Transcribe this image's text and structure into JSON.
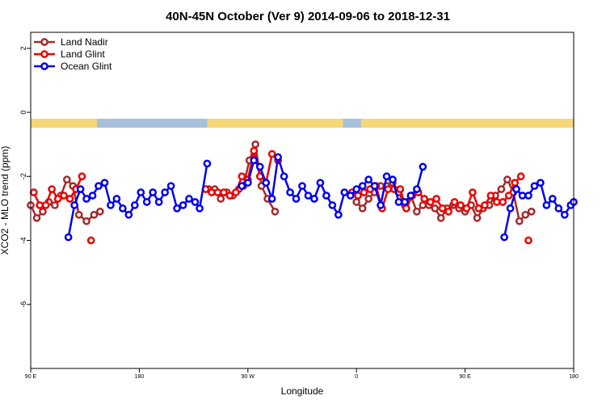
{
  "chart_data": {
    "type": "line",
    "title": "40N-45N October (Ver 9)   2014-09-06 to 2018-12-31",
    "xlabel": "Longitude",
    "ylabel": "XCO2 - MLO trend (ppm)",
    "xlim": [
      0,
      360
    ],
    "ylim": [
      -8,
      2.5
    ],
    "yticks": [
      2,
      0,
      -2,
      -4,
      -6
    ],
    "xticks": [
      {
        "pos": 0,
        "label": "90 E"
      },
      {
        "pos": 72,
        "label": "180"
      },
      {
        "pos": 144,
        "label": "90 W"
      },
      {
        "pos": 216,
        "label": "0"
      },
      {
        "pos": 288,
        "label": "90 E"
      },
      {
        "pos": 360,
        "label": "180"
      }
    ],
    "legend_position": "top-left",
    "land_band": {
      "y_top": -0.2,
      "y_bottom": -0.48,
      "ocean_color": "#a8bfd9",
      "land_color": "#f5d77a",
      "land_segments": [
        [
          0,
          44
        ],
        [
          117,
          207
        ],
        [
          219,
          360
        ]
      ]
    },
    "series": [
      {
        "name": "Land Nadir",
        "color": "#a52a2a",
        "segments": [
          [
            [
              0,
              -2.9
            ],
            [
              4,
              -3.3
            ],
            [
              8,
              -3.1
            ],
            [
              12,
              -2.8
            ],
            [
              16,
              -2.9
            ],
            [
              20,
              -2.6
            ],
            [
              24,
              -2.1
            ],
            [
              28,
              -2.3
            ],
            [
              32,
              -3.2
            ],
            [
              37,
              -3.4
            ],
            [
              42,
              -3.2
            ],
            [
              46,
              -3.1
            ]
          ],
          [
            [
              118,
              -2.4
            ],
            [
              122,
              -2.4
            ],
            [
              126,
              -2.7
            ],
            [
              130,
              -2.5
            ],
            [
              134,
              -2.6
            ],
            [
              138,
              -2.4
            ],
            [
              141,
              -2.3
            ],
            [
              145,
              -1.5
            ],
            [
              149,
              -1.0
            ],
            [
              153,
              -2.3
            ],
            [
              157,
              -2.7
            ],
            [
              162,
              -3.1
            ]
          ],
          [
            [
              216,
              -2.8
            ],
            [
              220,
              -3.0
            ],
            [
              224,
              -2.7
            ],
            [
              228,
              -2.5
            ],
            [
              232,
              -2.3
            ],
            [
              236,
              -2.3
            ],
            [
              240,
              -2.2
            ],
            [
              244,
              -2.5
            ],
            [
              248,
              -2.9
            ],
            [
              252,
              -2.6
            ],
            [
              256,
              -3.1
            ],
            [
              260,
              -2.9
            ],
            [
              264,
              -2.9
            ],
            [
              268,
              -3.0
            ],
            [
              272,
              -3.3
            ],
            [
              276,
              -3.0
            ],
            [
              280,
              -2.9
            ],
            [
              284,
              -3.0
            ],
            [
              288,
              -3.1
            ],
            [
              292,
              -2.9
            ],
            [
              296,
              -3.3
            ],
            [
              300,
              -3.0
            ],
            [
              304,
              -2.9
            ],
            [
              308,
              -2.6
            ],
            [
              312,
              -2.4
            ],
            [
              316,
              -2.1
            ],
            [
              320,
              -2.5
            ],
            [
              324,
              -3.4
            ],
            [
              328,
              -3.2
            ],
            [
              332,
              -3.1
            ]
          ]
        ]
      },
      {
        "name": "Land Glint",
        "color": "#ee0000",
        "segments": [
          [
            [
              2,
              -2.5
            ],
            [
              6,
              -2.9
            ],
            [
              10,
              -2.9
            ],
            [
              14,
              -2.4
            ],
            [
              18,
              -2.7
            ],
            [
              22,
              -2.6
            ],
            [
              26,
              -2.7
            ],
            [
              30,
              -2.4
            ],
            [
              34,
              -2.0
            ]
          ],
          [
            [
              40,
              -4.0
            ]
          ],
          [
            [
              116,
              -2.4
            ],
            [
              120,
              -2.5
            ],
            [
              124,
              -2.5
            ],
            [
              128,
              -2.5
            ],
            [
              132,
              -2.6
            ],
            [
              136,
              -2.5
            ],
            [
              140,
              -2.0
            ],
            [
              144,
              -2.1
            ],
            [
              148,
              -1.2
            ],
            [
              152,
              -2.0
            ],
            [
              156,
              -2.2
            ],
            [
              160,
              -1.3
            ],
            [
              164,
              -1.5
            ]
          ],
          [
            [
              213,
              -2.5
            ],
            [
              217,
              -2.6
            ],
            [
              221,
              -2.5
            ],
            [
              225,
              -2.4
            ],
            [
              229,
              -2.3
            ],
            [
              233,
              -3.0
            ],
            [
              237,
              -2.4
            ],
            [
              241,
              -2.4
            ],
            [
              245,
              -2.4
            ],
            [
              249,
              -3.0
            ],
            [
              253,
              -2.6
            ],
            [
              257,
              -2.5
            ],
            [
              261,
              -2.7
            ],
            [
              265,
              -2.8
            ],
            [
              269,
              -2.7
            ],
            [
              273,
              -3.0
            ],
            [
              277,
              -3.1
            ],
            [
              281,
              -2.8
            ],
            [
              285,
              -2.9
            ],
            [
              289,
              -3.0
            ],
            [
              293,
              -2.5
            ],
            [
              297,
              -3.0
            ],
            [
              301,
              -2.9
            ],
            [
              305,
              -2.6
            ],
            [
              309,
              -2.8
            ],
            [
              313,
              -2.8
            ],
            [
              317,
              -2.6
            ],
            [
              321,
              -2.2
            ],
            [
              325,
              -2.0
            ]
          ],
          [
            [
              330,
              -4.0
            ]
          ]
        ]
      },
      {
        "name": "Ocean Glint",
        "color": "#0000ee",
        "segments": [
          [
            [
              25,
              -3.9
            ],
            [
              29,
              -2.9
            ],
            [
              33,
              -2.4
            ],
            [
              37,
              -2.7
            ],
            [
              41,
              -2.6
            ],
            [
              45,
              -2.3
            ],
            [
              49,
              -2.2
            ],
            [
              53,
              -2.9
            ],
            [
              57,
              -2.7
            ],
            [
              61,
              -3.0
            ],
            [
              65,
              -3.2
            ],
            [
              69,
              -2.9
            ],
            [
              73,
              -2.5
            ],
            [
              77,
              -2.8
            ],
            [
              81,
              -2.5
            ],
            [
              85,
              -2.8
            ],
            [
              89,
              -2.5
            ],
            [
              93,
              -2.3
            ],
            [
              97,
              -3.0
            ],
            [
              101,
              -2.9
            ],
            [
              105,
              -2.7
            ],
            [
              109,
              -2.8
            ],
            [
              112,
              -3.0
            ],
            [
              117,
              -1.6
            ]
          ],
          [
            [
              140,
              -2.3
            ],
            [
              144,
              -2.2
            ],
            [
              148,
              -1.5
            ],
            [
              152,
              -1.7
            ],
            [
              156,
              -2.2
            ],
            [
              160,
              -2.7
            ],
            [
              164,
              -1.4
            ],
            [
              168,
              -2.0
            ],
            [
              172,
              -2.5
            ],
            [
              176,
              -2.7
            ],
            [
              180,
              -2.3
            ],
            [
              184,
              -2.6
            ],
            [
              188,
              -2.7
            ],
            [
              192,
              -2.2
            ],
            [
              196,
              -2.6
            ],
            [
              200,
              -2.9
            ],
            [
              204,
              -3.2
            ],
            [
              208,
              -2.5
            ],
            [
              212,
              -2.6
            ],
            [
              216,
              -2.4
            ],
            [
              220,
              -2.3
            ],
            [
              224,
              -2.1
            ],
            [
              228,
              -2.3
            ],
            [
              232,
              -2.9
            ],
            [
              236,
              -2.0
            ],
            [
              240,
              -2.1
            ],
            [
              244,
              -2.8
            ],
            [
              248,
              -2.8
            ],
            [
              252,
              -2.6
            ],
            [
              256,
              -2.4
            ],
            [
              260,
              -1.7
            ]
          ],
          [
            [
              314,
              -3.9
            ],
            [
              318,
              -3.0
            ],
            [
              322,
              -2.4
            ],
            [
              326,
              -2.6
            ],
            [
              330,
              -2.6
            ],
            [
              334,
              -2.3
            ],
            [
              338,
              -2.2
            ],
            [
              342,
              -2.9
            ],
            [
              346,
              -2.7
            ],
            [
              350,
              -3.0
            ],
            [
              354,
              -3.2
            ],
            [
              358,
              -2.9
            ],
            [
              360,
              -2.8
            ]
          ]
        ]
      }
    ]
  }
}
